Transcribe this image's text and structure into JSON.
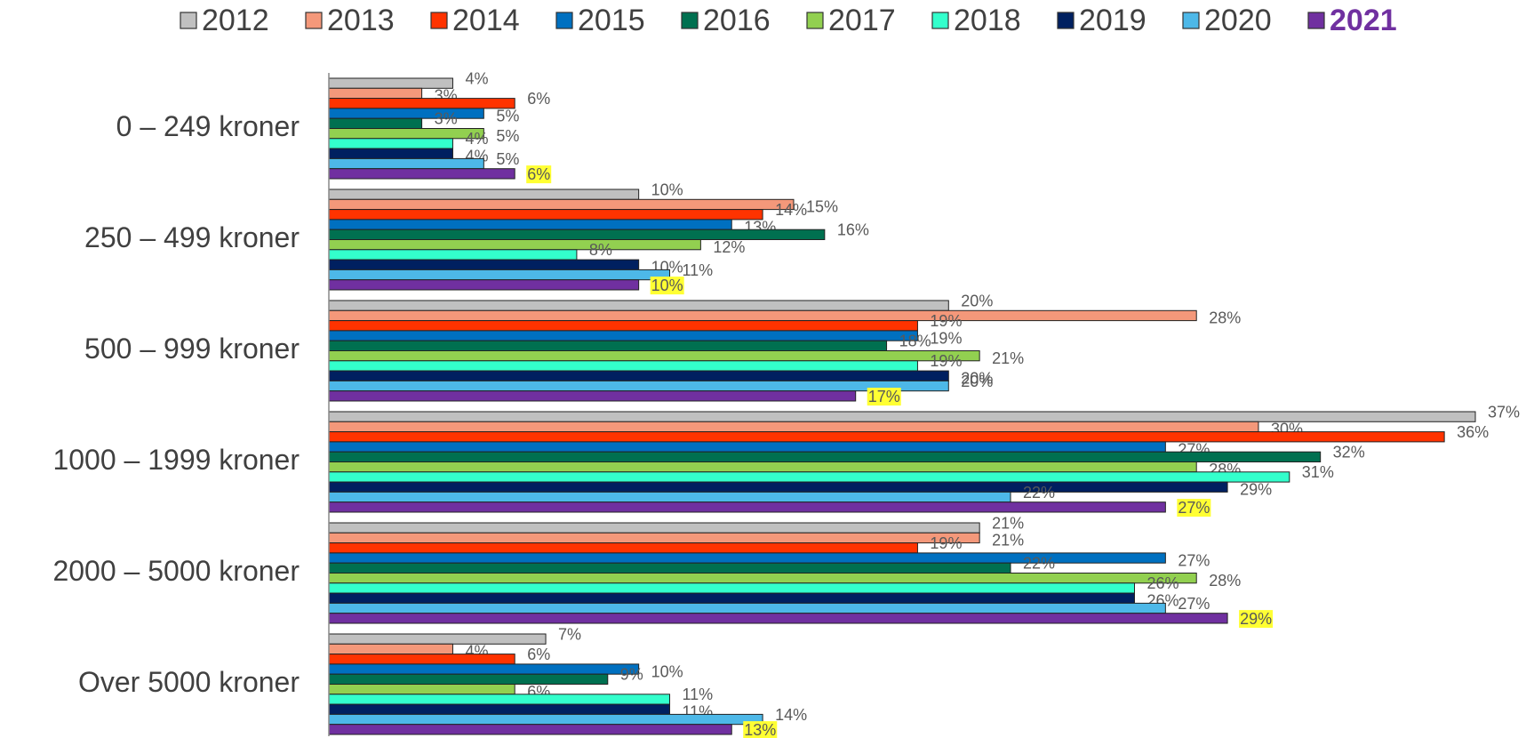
{
  "chart_data": {
    "type": "barh",
    "categories": [
      "0 – 249 kroner",
      "250 – 499 kroner",
      "500 – 999 kroner",
      "1000 – 1999 kroner",
      "2000 – 5000 kroner",
      "Over 5000 kroner"
    ],
    "xlim": [
      0,
      37
    ],
    "series": [
      {
        "name": "2012",
        "color": "#c0c0c0",
        "values": [
          4,
          10,
          20,
          37,
          21,
          7
        ],
        "value_labels": [
          "4%",
          "10%",
          "20%",
          "37%",
          "21%",
          "7%"
        ]
      },
      {
        "name": "2013",
        "color": "#f4987a",
        "values": [
          3,
          15,
          28,
          30,
          21,
          4
        ],
        "value_labels": [
          "3%",
          "15%",
          "28%",
          "30%",
          "21%",
          "4%"
        ]
      },
      {
        "name": "2014",
        "color": "#ff3300",
        "values": [
          6,
          14,
          19,
          36,
          19,
          6
        ],
        "value_labels": [
          "6%",
          "14%",
          "19%",
          "36%",
          "19%",
          "6%"
        ]
      },
      {
        "name": "2015",
        "color": "#0070c0",
        "values": [
          5,
          13,
          19,
          27,
          27,
          10
        ],
        "value_labels": [
          "5%",
          "13%",
          "19%",
          "27%",
          "27%",
          "10%"
        ]
      },
      {
        "name": "2016",
        "color": "#007050",
        "values": [
          3,
          16,
          18,
          32,
          22,
          9
        ],
        "value_labels": [
          "3%",
          "16%",
          "18%",
          "32%",
          "22%",
          "9%"
        ]
      },
      {
        "name": "2017",
        "color": "#92d050",
        "values": [
          5,
          12,
          21,
          28,
          28,
          6
        ],
        "value_labels": [
          "5%",
          "12%",
          "21%",
          "28%",
          "28%",
          "6%"
        ]
      },
      {
        "name": "2018",
        "color": "#33ffcc",
        "values": [
          4,
          8,
          19,
          31,
          26,
          11
        ],
        "value_labels": [
          "4%",
          "8%",
          "19%",
          "31%",
          "26%",
          "11%"
        ]
      },
      {
        "name": "2019",
        "color": "#002060",
        "values": [
          4,
          10,
          20,
          29,
          26,
          11
        ],
        "value_labels": [
          "4%",
          "10%",
          "20%",
          "29%",
          "26%",
          "11%"
        ]
      },
      {
        "name": "2020",
        "color": "#4db8e8",
        "values": [
          5,
          11,
          20,
          22,
          27,
          14
        ],
        "value_labels": [
          "5%",
          "11%",
          "20%",
          "22%",
          "27%",
          "14%"
        ]
      },
      {
        "name": "2021",
        "color": "#7030a0",
        "values": [
          6,
          10,
          17,
          27,
          29,
          13
        ],
        "value_labels": [
          "6%",
          "10%",
          "17%",
          "27%",
          "29%",
          "13%"
        ]
      }
    ]
  }
}
